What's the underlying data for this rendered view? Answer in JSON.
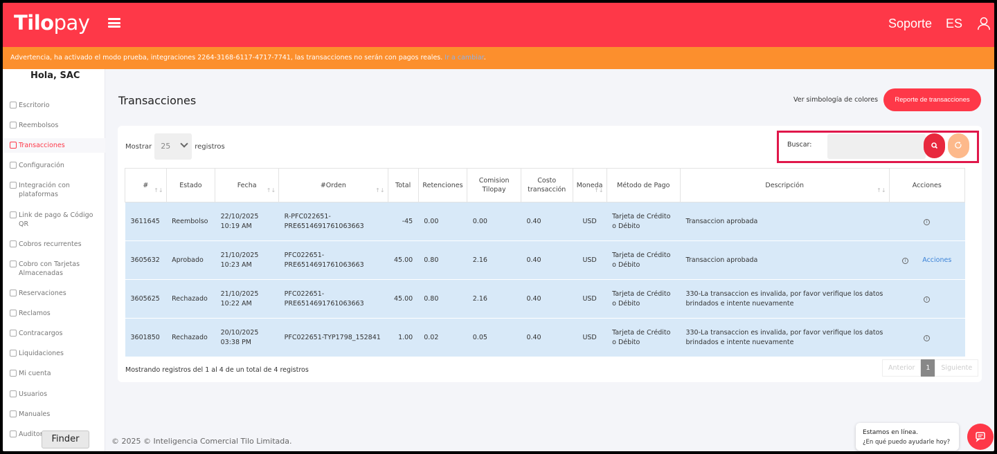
{
  "header": {
    "logo_bold": "Tilo",
    "logo_light": "pay",
    "support": "Soporte",
    "language": "ES",
    "brand_color": "#fe3848"
  },
  "warning": {
    "text": "Advertencia, ha activado el modo prueba, integraciones 2264-3168-6117-4717-7741, las transacciones no serán con pagos reales.",
    "link": "Ir a cambiar",
    "tail": ".",
    "color": "#fc8f2d"
  },
  "sidebar": {
    "greeting": "Hola, SAC",
    "items": [
      {
        "label": "Escritorio",
        "icon": "dashboard-icon"
      },
      {
        "label": "Reembolsos",
        "icon": "refund-icon"
      },
      {
        "label": "Transacciones",
        "icon": "transactions-icon",
        "active": true
      },
      {
        "label": "Configuración",
        "icon": "settings-icon"
      },
      {
        "label": "Integración con plataformas",
        "icon": "cart-icon"
      },
      {
        "label": "Link de pago & Código QR",
        "icon": "link-icon"
      },
      {
        "label": "Cobros recurrentes",
        "icon": "recurring-icon"
      },
      {
        "label": "Cobro con Tarjetas Almacenadas",
        "icon": "card-stack-icon"
      },
      {
        "label": "Reservaciones",
        "icon": "reservation-icon"
      },
      {
        "label": "Reclamos",
        "icon": "claim-icon"
      },
      {
        "label": "Contracargos",
        "icon": "bank-icon"
      },
      {
        "label": "Liquidaciones",
        "icon": "money-icon"
      },
      {
        "label": "Mi cuenta",
        "icon": "account-icon"
      },
      {
        "label": "Usuarios",
        "icon": "users-icon"
      },
      {
        "label": "Manuales",
        "icon": "info-icon"
      },
      {
        "label": "Auditoria",
        "icon": "audit-icon"
      }
    ]
  },
  "finder": "Finder",
  "main": {
    "title": "Transacciones",
    "legend_link": "Ver simbología de colores",
    "report_button": "Reporte de transacciones",
    "show_label": "Mostrar",
    "page_length": "25",
    "records_label": "registros",
    "search_label": "Buscar:",
    "columns": [
      "#",
      "Estado",
      "Fecha",
      "#Orden",
      "Total",
      "Retenciones",
      "Comision Tilopay",
      "Costo transacción",
      "Moneda",
      "Método de Pago",
      "Descripción",
      "Acciones"
    ],
    "rows": [
      {
        "id": "3611645",
        "estado": "Reembolso",
        "fecha": "22/10/2025 10:19 AM",
        "orden": "R-PFC022651-PRE6514691761063663",
        "total": "-45",
        "retenciones": "0.00",
        "comision": "0.00",
        "costo": "0.40",
        "moneda": "USD",
        "metodo": "Tarjeta de Crédito o Débito",
        "descripcion": "Transaccion aprobada",
        "accion": ""
      },
      {
        "id": "3605632",
        "estado": "Aprobado",
        "fecha": "21/10/2025 10:23 AM",
        "orden": "PFC022651-PRE6514691761063663",
        "total": "45.00",
        "retenciones": "0.80",
        "comision": "2.16",
        "costo": "0.40",
        "moneda": "USD",
        "metodo": "Tarjeta de Crédito o Débito",
        "descripcion": "Transaccion aprobada",
        "accion": "Acciones"
      },
      {
        "id": "3605625",
        "estado": "Rechazado",
        "fecha": "21/10/2025 10:22 AM",
        "orden": "PFC022651-PRE6514691761063663",
        "total": "45.00",
        "retenciones": "0.80",
        "comision": "2.16",
        "costo": "0.40",
        "moneda": "USD",
        "metodo": "Tarjeta de Crédito o Débito",
        "descripcion": "330-La transaccion es invalida, por favor verifique los datos brindados e intente nuevamente",
        "accion": ""
      },
      {
        "id": "3601850",
        "estado": "Rechazado",
        "fecha": "20/10/2025 03:38 PM",
        "orden": "PFC022651-TYP1798_152841",
        "total": "1.00",
        "retenciones": "0.02",
        "comision": "0.05",
        "costo": "0.40",
        "moneda": "USD",
        "metodo": "Tarjeta de Crédito o Débito",
        "descripcion": "330-La transaccion es invalida, por favor verifique los datos brindados e intente nuevamente",
        "accion": ""
      }
    ],
    "summary": "Mostrando registros del 1 al 4 de un total de 4 registros",
    "pager": {
      "prev": "Anterior",
      "current": "1",
      "next": "Siguiente"
    }
  },
  "footer": {
    "copyright": "© 2025 © Inteligencia Comercial Tilo Limitada."
  },
  "chat": {
    "title": "Estamos en línea.",
    "subtitle": "¿En qué puedo ayudarle hoy?"
  }
}
